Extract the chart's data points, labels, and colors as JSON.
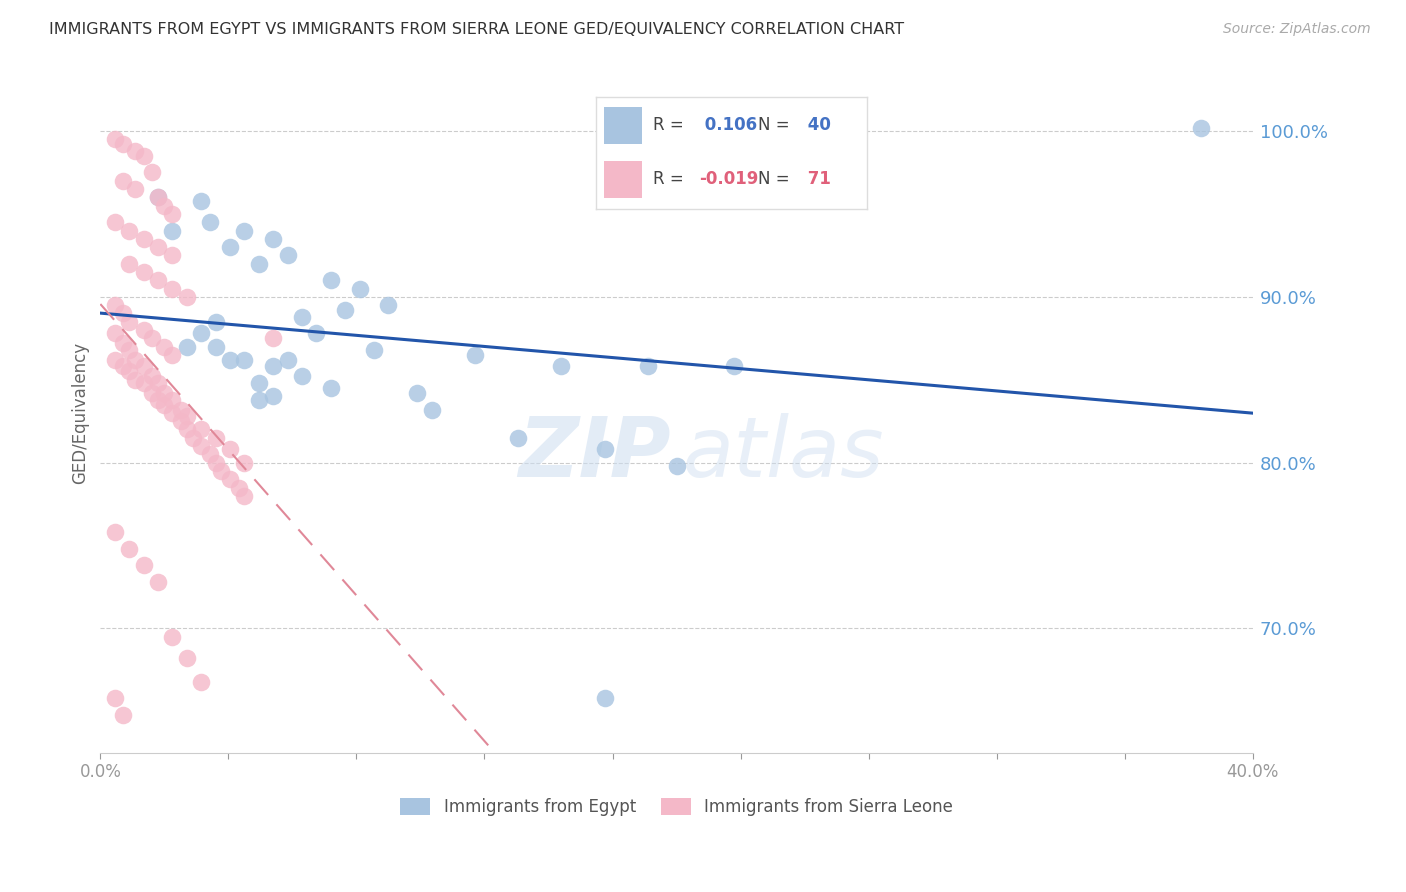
{
  "title": "IMMIGRANTS FROM EGYPT VS IMMIGRANTS FROM SIERRA LEONE GED/EQUIVALENCY CORRELATION CHART",
  "source": "Source: ZipAtlas.com",
  "ylabel": "GED/Equivalency",
  "R_egypt": 0.106,
  "N_egypt": 40,
  "R_sierra": -0.019,
  "N_sierra": 71,
  "egypt_color": "#a8c4e0",
  "sierra_color": "#f4b8c8",
  "egypt_line_color": "#2255aa",
  "sierra_line_color": "#e08898",
  "y_tick_labels": [
    "100.0%",
    "90.0%",
    "80.0%",
    "70.0%"
  ],
  "y_tick_values": [
    1.0,
    0.9,
    0.8,
    0.7
  ],
  "xlim": [
    0.0,
    0.4
  ],
  "ylim": [
    0.625,
    1.035
  ],
  "watermark_zip": "ZIP",
  "watermark_atlas": "atlas",
  "egypt_x": [
    0.382,
    0.02,
    0.038,
    0.05,
    0.06,
    0.045,
    0.065,
    0.035,
    0.025,
    0.055,
    0.08,
    0.09,
    0.1,
    0.085,
    0.07,
    0.075,
    0.095,
    0.13,
    0.05,
    0.06,
    0.07,
    0.04,
    0.08,
    0.035,
    0.055,
    0.115,
    0.065,
    0.04,
    0.11,
    0.06,
    0.045,
    0.03,
    0.055,
    0.22,
    0.19,
    0.16,
    0.145,
    0.175,
    0.2,
    0.175
  ],
  "egypt_y": [
    1.002,
    0.96,
    0.945,
    0.94,
    0.935,
    0.93,
    0.925,
    0.958,
    0.94,
    0.92,
    0.91,
    0.905,
    0.895,
    0.892,
    0.888,
    0.878,
    0.868,
    0.865,
    0.862,
    0.858,
    0.852,
    0.885,
    0.845,
    0.878,
    0.838,
    0.832,
    0.862,
    0.87,
    0.842,
    0.84,
    0.862,
    0.87,
    0.848,
    0.858,
    0.858,
    0.858,
    0.815,
    0.808,
    0.798,
    0.658
  ],
  "sierra_x": [
    0.005,
    0.008,
    0.012,
    0.015,
    0.018,
    0.008,
    0.012,
    0.02,
    0.022,
    0.025,
    0.005,
    0.01,
    0.015,
    0.02,
    0.025,
    0.01,
    0.015,
    0.02,
    0.025,
    0.03,
    0.005,
    0.008,
    0.01,
    0.015,
    0.018,
    0.022,
    0.025,
    0.005,
    0.008,
    0.01,
    0.012,
    0.015,
    0.018,
    0.02,
    0.022,
    0.025,
    0.028,
    0.03,
    0.032,
    0.035,
    0.038,
    0.04,
    0.042,
    0.045,
    0.048,
    0.05,
    0.005,
    0.008,
    0.01,
    0.012,
    0.015,
    0.018,
    0.02,
    0.022,
    0.025,
    0.028,
    0.03,
    0.035,
    0.04,
    0.045,
    0.05,
    0.06,
    0.005,
    0.01,
    0.015,
    0.02,
    0.025,
    0.03,
    0.035,
    0.005,
    0.008
  ],
  "sierra_y": [
    0.995,
    0.992,
    0.988,
    0.985,
    0.975,
    0.97,
    0.965,
    0.96,
    0.955,
    0.95,
    0.945,
    0.94,
    0.935,
    0.93,
    0.925,
    0.92,
    0.915,
    0.91,
    0.905,
    0.9,
    0.895,
    0.89,
    0.885,
    0.88,
    0.875,
    0.87,
    0.865,
    0.862,
    0.858,
    0.855,
    0.85,
    0.848,
    0.842,
    0.838,
    0.835,
    0.83,
    0.825,
    0.82,
    0.815,
    0.81,
    0.805,
    0.8,
    0.795,
    0.79,
    0.785,
    0.78,
    0.878,
    0.872,
    0.868,
    0.862,
    0.858,
    0.852,
    0.848,
    0.842,
    0.838,
    0.832,
    0.828,
    0.82,
    0.815,
    0.808,
    0.8,
    0.875,
    0.758,
    0.748,
    0.738,
    0.728,
    0.695,
    0.682,
    0.668,
    0.658,
    0.648
  ]
}
